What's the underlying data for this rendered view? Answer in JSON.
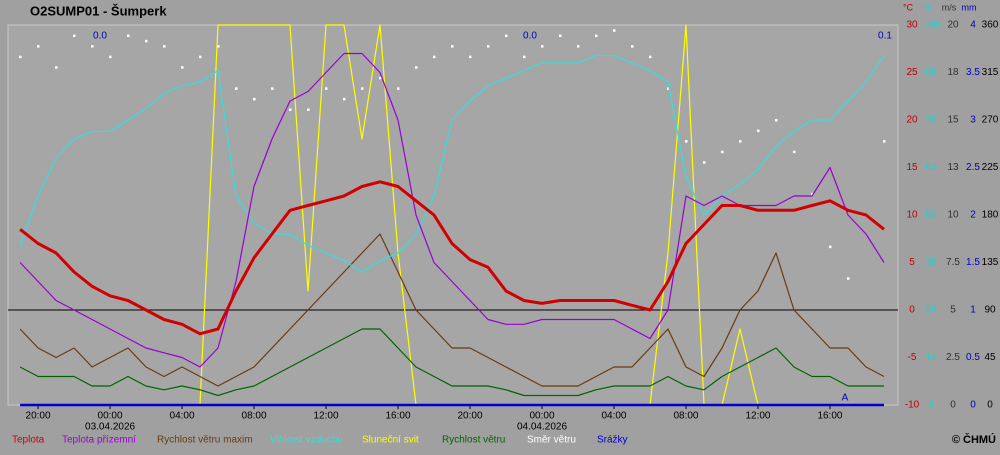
{
  "chart_data": {
    "type": "line",
    "title": "O2SUMP01 - Šumperk",
    "copyright": "© ČHMÚ",
    "x": [
      -5,
      -4,
      -3,
      -2,
      -1,
      0,
      1,
      2,
      3,
      4,
      5,
      6,
      7,
      8,
      9,
      10,
      11,
      12,
      13,
      14,
      15,
      16,
      17,
      18,
      19,
      20,
      21,
      22,
      23,
      24,
      25,
      26,
      27,
      28,
      29,
      30,
      31,
      32,
      33,
      34,
      35,
      36,
      37,
      38,
      39,
      40,
      41,
      42,
      43
    ],
    "xlim": [
      -5.67,
      43.78
    ],
    "xticks": [
      {
        "value": -4,
        "label": "20:00"
      },
      {
        "value": 0,
        "label": "00:00"
      },
      {
        "value": 4,
        "label": "04:00"
      },
      {
        "value": 8,
        "label": "08:00"
      },
      {
        "value": 12,
        "label": "12:00"
      },
      {
        "value": 16,
        "label": "16:00"
      },
      {
        "value": 20,
        "label": "20:00"
      },
      {
        "value": 24,
        "label": "00:00"
      },
      {
        "value": 28,
        "label": "04:00"
      },
      {
        "value": 32,
        "label": "08:00"
      },
      {
        "value": 36,
        "label": "12:00"
      },
      {
        "value": 40,
        "label": "16:00"
      }
    ],
    "date_labels": [
      {
        "value": 0,
        "label": "03.04.2026"
      },
      {
        "value": 24,
        "label": "04.04.2026"
      }
    ],
    "ylim": [
      -10,
      30
    ],
    "yticks": [
      -10,
      -5,
      0,
      5,
      10,
      15,
      20,
      25,
      30
    ],
    "y2lim": [
      0,
      100
    ],
    "y2ticks": [
      0,
      {
        "value": 12.5,
        "label": "13"
      },
      25,
      {
        "value": 37.5,
        "label": "38"
      },
      50,
      {
        "value": 62.5,
        "label": "63"
      },
      75,
      {
        "value": 87.5,
        "label": "88"
      },
      100
    ],
    "y3lim": [
      0,
      20
    ],
    "y3ticks": [
      0,
      2.5,
      5,
      7.5,
      10,
      {
        "value": 12.5,
        "label": "13"
      },
      15,
      {
        "value": 17.5,
        "label": "18"
      },
      20
    ],
    "y4lim": [
      0,
      4
    ],
    "y4ticks": [
      0,
      0.5,
      1,
      1.5,
      2,
      2.5,
      3,
      3.5,
      4
    ],
    "y5lim": [
      0,
      360
    ],
    "y5ticks": [
      0,
      45,
      90,
      135,
      180,
      225,
      270,
      315,
      360
    ],
    "axis_units": {
      "y": "°C",
      "y2": "%",
      "y3": "m/s",
      "y4": "mm"
    },
    "axis_colors": {
      "y": "#c00000",
      "y2": "#10d8d8",
      "y3": "#303030",
      "y4": "#0000c0",
      "y5": "#000000"
    },
    "zero_line": 0,
    "precip_sums": [
      "0.0",
      "0.0",
      "0.1"
    ],
    "annotation": "A",
    "series": [
      {
        "name": "Teplota",
        "color": "#d00000",
        "axis": "y",
        "values": [
          8.5,
          7,
          6,
          4,
          2.5,
          1.5,
          1,
          0,
          -1,
          -1.5,
          -2.5,
          -2,
          2,
          5.5,
          8,
          10.5,
          11,
          11.5,
          12,
          13,
          13.5,
          13,
          11.5,
          10,
          7,
          5.3,
          4.5,
          2,
          1,
          0.7,
          1,
          1,
          1,
          1,
          0.5,
          0,
          3,
          7,
          9,
          11,
          11,
          10.5,
          10.5,
          10.5,
          11,
          11.5,
          10.5,
          10,
          8.5
        ]
      },
      {
        "name": "Teplota přízemní",
        "color": "#9a00d0",
        "axis": "y",
        "values": [
          5,
          3,
          1,
          0,
          -1,
          -2,
          -3,
          -4,
          -4.5,
          -5,
          -6,
          -4,
          3,
          13,
          18,
          22,
          23,
          25,
          27,
          27,
          25,
          20,
          10,
          5,
          3,
          1,
          -1,
          -1.5,
          -1.5,
          -1,
          -1,
          -1,
          -1,
          -1,
          -2,
          -3,
          0,
          12,
          11,
          12,
          11,
          11,
          11,
          12,
          12,
          15,
          10,
          8,
          5
        ]
      },
      {
        "name": "Rychlost větru maxim",
        "color": "#6a3a10",
        "axis": "y3",
        "values": [
          4,
          3,
          2.5,
          3,
          2,
          2.5,
          3,
          2,
          1.5,
          2,
          1.5,
          1,
          1.5,
          2,
          3,
          4,
          5,
          6,
          7,
          8,
          9,
          7,
          5,
          4,
          3,
          3,
          2.5,
          2,
          1.5,
          1,
          1,
          1,
          1.5,
          2,
          2,
          3,
          4,
          2,
          1.5,
          3,
          5,
          6,
          8,
          5,
          4,
          3,
          3,
          2,
          1.5
        ]
      },
      {
        "name": "Vlhkost vzduchu",
        "color": "#30e0e0",
        "axis": "y2",
        "values": [
          42,
          55,
          65,
          70,
          72,
          72,
          75,
          78,
          82,
          84,
          85,
          88,
          55,
          48,
          45,
          45,
          42,
          40,
          38,
          35,
          38,
          40,
          45,
          55,
          75,
          80,
          84,
          86,
          88,
          90,
          90,
          90,
          92,
          92,
          90,
          88,
          85,
          60,
          50,
          55,
          58,
          62,
          68,
          72,
          75,
          75,
          80,
          85,
          92
        ]
      },
      {
        "name": "Sluneční svit",
        "color": "#ffff00",
        "axis": "y2",
        "values": [
          0,
          0,
          0,
          0,
          0,
          0,
          0,
          0,
          0,
          0,
          0,
          100,
          100,
          100,
          100,
          100,
          30,
          100,
          100,
          70,
          100,
          40,
          0,
          0,
          0,
          0,
          0,
          0,
          0,
          0,
          0,
          0,
          0,
          0,
          0,
          0,
          40,
          100,
          0,
          0,
          20,
          0,
          0,
          0,
          0,
          0,
          0,
          0,
          0
        ]
      },
      {
        "name": "Rychlost větru",
        "color": "#006400",
        "axis": "y3",
        "values": [
          2,
          1.5,
          1.5,
          1.5,
          1,
          1,
          1.5,
          1,
          0.8,
          1,
          0.8,
          0.5,
          0.8,
          1,
          1.5,
          2,
          2.5,
          3,
          3.5,
          4,
          4,
          3,
          2,
          1.5,
          1,
          1,
          1,
          0.8,
          0.5,
          0.5,
          0.5,
          0.5,
          0.8,
          1,
          1,
          1,
          1.5,
          1,
          0.8,
          1.5,
          2,
          2.5,
          3,
          2,
          1.5,
          1.5,
          1,
          1,
          1
        ]
      },
      {
        "name": "Směr větru",
        "color": "#ffffff",
        "axis": "y5",
        "marker": "dots",
        "values": [
          330,
          340,
          320,
          350,
          340,
          330,
          350,
          345,
          340,
          320,
          330,
          340,
          300,
          290,
          300,
          280,
          280,
          300,
          290,
          300,
          310,
          300,
          320,
          330,
          340,
          330,
          340,
          350,
          330,
          340,
          350,
          340,
          350,
          355,
          340,
          330,
          300,
          250,
          230,
          240,
          250,
          260,
          270,
          240,
          200,
          150,
          120,
          180,
          250
        ]
      },
      {
        "name": "Srážky",
        "color": "#0000d0",
        "axis": "y4",
        "values": [
          0,
          0,
          0,
          0,
          0,
          0,
          0,
          0,
          0,
          0,
          0,
          0,
          0,
          0,
          0,
          0,
          0,
          0,
          0,
          0,
          0,
          0,
          0,
          0,
          0,
          0,
          0,
          0,
          0,
          0,
          0,
          0,
          0,
          0,
          0,
          0,
          0,
          0,
          0,
          0,
          0,
          0,
          0,
          0,
          0,
          0,
          0,
          0,
          0
        ]
      }
    ]
  }
}
